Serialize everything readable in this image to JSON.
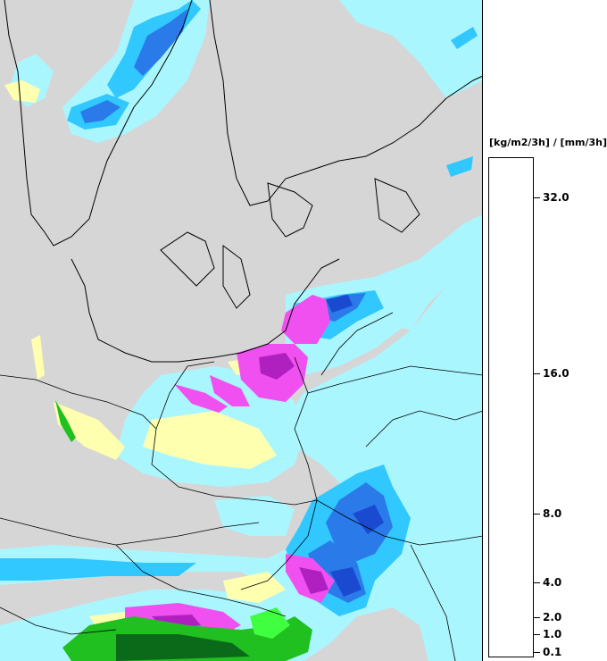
{
  "legend": {
    "unit": "[kg/m2/3h] / [mm/3h]",
    "ticks": [
      "32.0",
      "16.0",
      "8.0",
      "4.0",
      "2.0",
      "1.0",
      "0.1"
    ],
    "bands": [
      {
        "col1": "#ff7f00",
        "col2": "#ff0000",
        "col3": "#ff7f00"
      },
      {
        "col1": "#1a1acc",
        "col2": "#6a1a6a",
        "col3": "#0a4a2a"
      },
      {
        "col1": "#1a3ed0",
        "col2": "#8a1a9a",
        "col3": "#0a6a1a"
      },
      {
        "col1": "#1a5ad8",
        "col2": "#b01ab8",
        "col3": "#0a8a1a"
      },
      {
        "col1": "#1a7ae8",
        "col2": "#e02ae0",
        "col3": "#20b020"
      },
      {
        "col1": "#2aa8f8",
        "col2": "#ff50ff",
        "col3": "#40ff40"
      },
      {
        "col1": "#30c8ff",
        "col2": "#ff90ff",
        "col3": "#b0f000"
      },
      {
        "col1": "#b0f8ff",
        "col2": "#ffc0ff",
        "col3": "#ffffb0"
      }
    ]
  },
  "colors": {
    "land": "#d6d6d6",
    "light_cyan": "#aaf6ff",
    "cyan": "#30c8ff",
    "blue": "#2a7aea",
    "dark_blue": "#1a4ad0",
    "magenta": "#f050f0",
    "purple": "#b020c0",
    "green": "#20c020",
    "dark_green": "#0a6a1a",
    "yellow": "#ffffb0",
    "lime": "#b0f000"
  }
}
